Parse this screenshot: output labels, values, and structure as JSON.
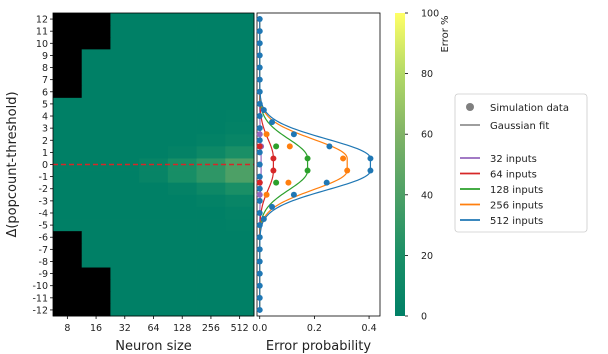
{
  "chart_data": [
    {
      "type": "heatmap",
      "xlabel": "Neuron size",
      "ylabel": "Δ(popcount-threshold)",
      "x_categories": [
        "8",
        "16",
        "32",
        "64",
        "128",
        "256",
        "512"
      ],
      "y_categories": [
        "12",
        "11",
        "10",
        "9",
        "8",
        "7",
        "6",
        "5",
        "4",
        "3",
        "2",
        "1",
        "0",
        "-1",
        "-2",
        "-3",
        "-4",
        "-5",
        "-6",
        "-7",
        "-8",
        "-9",
        "-10",
        "-11",
        "-12"
      ],
      "values": [
        [
          -1,
          -1,
          0,
          0,
          0,
          0,
          0
        ],
        [
          -1,
          -1,
          0,
          0,
          0,
          0,
          0
        ],
        [
          -1,
          -1,
          0,
          0,
          0,
          0,
          0
        ],
        [
          -1,
          0,
          0,
          0,
          0,
          0,
          0
        ],
        [
          -1,
          0,
          0,
          0,
          0,
          0,
          0
        ],
        [
          -1,
          0,
          0,
          0,
          0,
          0,
          0
        ],
        [
          -1,
          0,
          0,
          0,
          0,
          0,
          0
        ],
        [
          0,
          0,
          0,
          0,
          0,
          0,
          0
        ],
        [
          0,
          0,
          0,
          0,
          0,
          0,
          1
        ],
        [
          0,
          0,
          0,
          0,
          0,
          0,
          2
        ],
        [
          0,
          0,
          0,
          0,
          0,
          2,
          6
        ],
        [
          0,
          0,
          0,
          0,
          3,
          10,
          20
        ],
        [
          0,
          0,
          0,
          5,
          18,
          28,
          40
        ],
        [
          0,
          0,
          0,
          5,
          18,
          28,
          40
        ],
        [
          0,
          0,
          0,
          0,
          3,
          10,
          20
        ],
        [
          0,
          0,
          0,
          0,
          0,
          2,
          6
        ],
        [
          0,
          0,
          0,
          0,
          0,
          0,
          2
        ],
        [
          0,
          0,
          0,
          0,
          0,
          0,
          1
        ],
        [
          -1,
          0,
          0,
          0,
          0,
          0,
          0
        ],
        [
          -1,
          0,
          0,
          0,
          0,
          0,
          0
        ],
        [
          -1,
          0,
          0,
          0,
          0,
          0,
          0
        ],
        [
          -1,
          -1,
          0,
          0,
          0,
          0,
          0
        ],
        [
          -1,
          -1,
          0,
          0,
          0,
          0,
          0
        ],
        [
          -1,
          -1,
          0,
          0,
          0,
          0,
          0
        ],
        [
          -1,
          -1,
          0,
          0,
          0,
          0,
          0
        ]
      ],
      "colorbar": {
        "label": "Error %",
        "range": [
          0,
          100
        ],
        "ticks": [
          "0",
          "20",
          "40",
          "60",
          "80",
          "100"
        ]
      },
      "threshold_line": {
        "y": "0",
        "color": "#d62728",
        "style": "dashed"
      },
      "undefined_color": "#000000"
    },
    {
      "type": "line",
      "xlabel": "Error probability",
      "ylabel": "",
      "xlim": [
        -0.01,
        0.44
      ],
      "xticks": [
        "0.0",
        "0.2",
        "0.4"
      ],
      "y_categories": [
        "12",
        "11",
        "10",
        "9",
        "8",
        "7",
        "6",
        "5",
        "4",
        "3",
        "2",
        "1",
        "0",
        "-1",
        "-2",
        "-3",
        "-4",
        "-5",
        "-6",
        "-7",
        "-8",
        "-9",
        "-10",
        "-11",
        "-12"
      ],
      "series": [
        {
          "name": "32 inputs",
          "color": "#9467bd",
          "points": [
            [
              0.005,
              1.5
            ],
            [
              0.0,
              2.5
            ],
            [
              0.0,
              -1.5
            ],
            [
              0.0,
              -2.5
            ]
          ]
        },
        {
          "name": "64 inputs",
          "color": "#d62728",
          "points": [
            [
              0.05,
              0.5
            ],
            [
              0.05,
              -0.5
            ],
            [
              0.0,
              1.5
            ],
            [
              0.0,
              -1.5
            ]
          ]
        },
        {
          "name": "128 inputs",
          "color": "#2ca02c",
          "points": [
            [
              0.175,
              0.5
            ],
            [
              0.175,
              -0.5
            ],
            [
              0.06,
              1.5
            ],
            [
              0.06,
              -1.5
            ]
          ]
        },
        {
          "name": "256 inputs",
          "color": "#ff7f0e",
          "points": [
            [
              0.305,
              0.5
            ],
            [
              0.32,
              -0.5
            ],
            [
              0.11,
              1.5
            ],
            [
              0.105,
              -1.5
            ],
            [
              0.025,
              2.5
            ],
            [
              0.025,
              -2.5
            ]
          ]
        },
        {
          "name": "512 inputs",
          "color": "#1f77b4",
          "points": [
            [
              0.405,
              0.5
            ],
            [
              0.405,
              -0.5
            ],
            [
              0.255,
              1.5
            ],
            [
              0.245,
              -1.5
            ],
            [
              0.125,
              2.5
            ],
            [
              0.125,
              -2.5
            ],
            [
              0.045,
              3.5
            ],
            [
              0.045,
              -3.5
            ],
            [
              0.015,
              4.5
            ],
            [
              0.015,
              -4.5
            ]
          ]
        }
      ],
      "legend": {
        "position": "right",
        "marker_entries": [
          "Simulation data",
          "Gaussian fit"
        ],
        "series_entries": [
          "32 inputs",
          "64 inputs",
          "128 inputs",
          "256 inputs",
          "512 inputs"
        ]
      }
    }
  ]
}
